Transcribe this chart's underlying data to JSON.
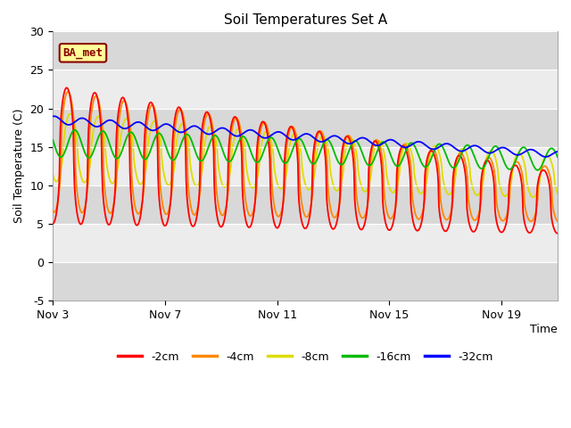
{
  "title": "Soil Temperatures Set A",
  "xlabel": "Time",
  "ylabel": "Soil Temperature (C)",
  "ylim": [
    -5,
    30
  ],
  "annotation": "BA_met",
  "legend_labels": [
    "-2cm",
    "-4cm",
    "-8cm",
    "-16cm",
    "-32cm"
  ],
  "legend_colors": [
    "#ff0000",
    "#ff8800",
    "#dddd00",
    "#00bb00",
    "#0000ff"
  ],
  "tick_labels_x": [
    "Nov 3",
    "Nov 7",
    "Nov 11",
    "Nov 15",
    "Nov 19"
  ],
  "tick_positions_x": [
    0,
    4,
    8,
    12,
    16
  ],
  "yticks": [
    -5,
    0,
    5,
    10,
    15,
    20,
    25,
    30
  ],
  "n_days": 18,
  "pts_per_day": 48
}
